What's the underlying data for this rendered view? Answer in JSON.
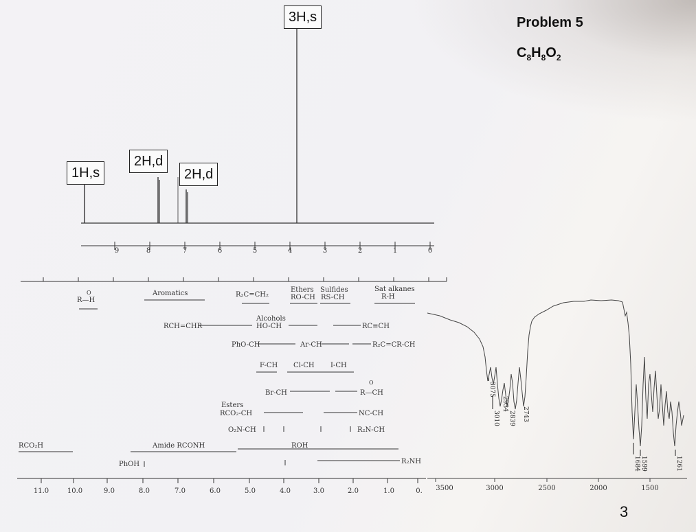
{
  "header": {
    "problem_title": "Problem 5",
    "formula": {
      "C": "C",
      "c_count": "8",
      "H": "H",
      "h_count": "8",
      "O": "O",
      "o_count": "2"
    },
    "page_number": "3"
  },
  "nmr": {
    "peak_labels": [
      "1H,s",
      "2H,d",
      "2H,d",
      "3H,s"
    ],
    "ppm_ticks": [
      "9",
      "8",
      "7",
      "6",
      "5",
      "4",
      "3",
      "2",
      "1",
      "0"
    ]
  },
  "reference_chart": {
    "aldehyde": "R—H",
    "aromatics": "Aromatics",
    "alkene": "R₂C=CH₂",
    "ethers": "Ethers",
    "ethers_sub": "RO-CH",
    "sulfides": "Sulfides",
    "sulfides_sub": "RS-CH",
    "sat_alkanes": "Sat alkanes",
    "sat_alkanes_sub": "R-H",
    "alcohols": "Alcohols",
    "alcohols_sub": "HO-CH",
    "vinyl": "RCH=CHR",
    "alkyne": "RC≡CH",
    "phenyl_ether": "PhO-CH",
    "benzylic": "Ar-CH",
    "allylic": "R₂C=CR-CH",
    "fluoride": "F-CH",
    "chloride": "Cl-CH",
    "iodide": "I-CH",
    "bromide": "Br-CH",
    "ketone": "R—CH",
    "esters": "Esters",
    "esters_sub": "RCO₂-CH",
    "nitrile": "NC-CH",
    "nitro": "O₂N-CH",
    "amine": "R₂N-CH",
    "acid": "RCO₂H",
    "amide": "Amide RCONH",
    "alcohol_oh": "ROH",
    "phenol": "PhOH",
    "amine_nh": "R₂NH",
    "bottom_ticks": [
      "11.0",
      "10.0",
      "9.0",
      "8.0",
      "7.0",
      "6.0",
      "5.0",
      "4.0",
      "3.0",
      "2.0",
      "1.0",
      "0."
    ]
  },
  "ir": {
    "x_ticks": [
      "3500",
      "3000",
      "2500",
      "2000",
      "1500"
    ],
    "peak_labels": [
      "3075",
      "3010",
      "2934",
      "2839",
      "2743",
      "1684",
      "1599",
      "1261"
    ]
  }
}
